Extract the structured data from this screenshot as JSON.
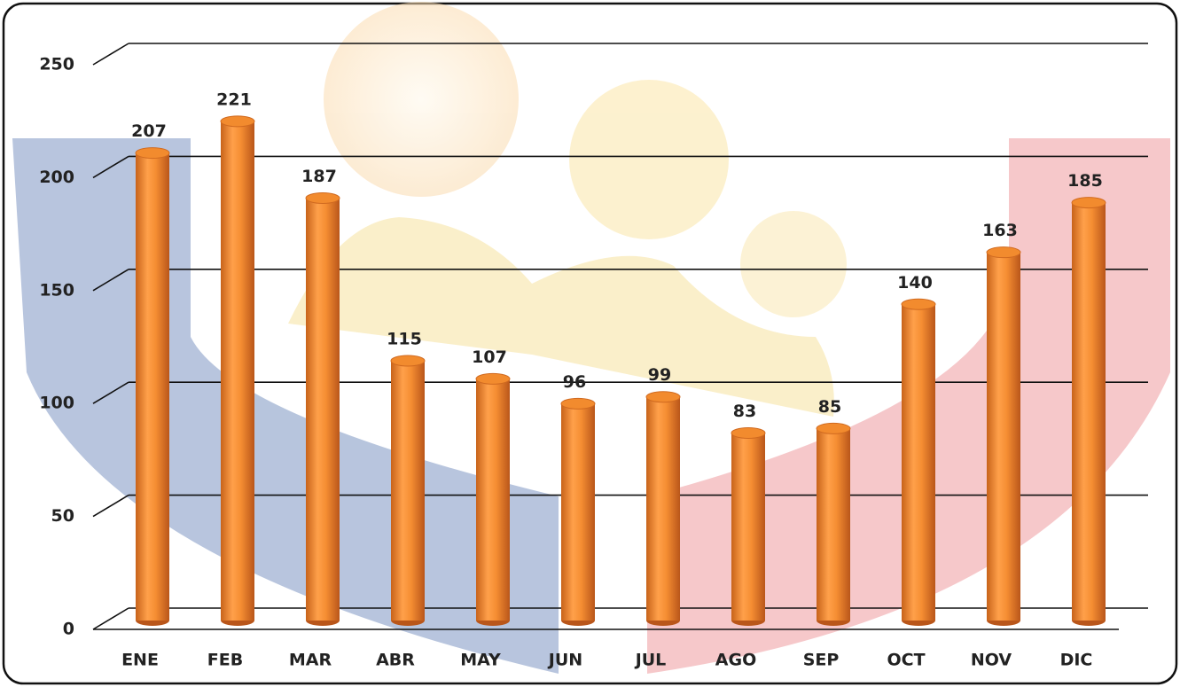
{
  "chart_data": {
    "type": "bar",
    "categories": [
      "ENE",
      "FEB",
      "MAR",
      "ABR",
      "MAY",
      "JUN",
      "JUL",
      "AGO",
      "SEP",
      "OCT",
      "NOV",
      "DIC"
    ],
    "values": [
      207,
      221,
      187,
      115,
      107,
      96,
      99,
      83,
      85,
      140,
      163,
      185
    ],
    "color": "#f28b2e",
    "ylim": [
      0,
      250
    ],
    "yticks": [
      0,
      50,
      100,
      150,
      200,
      250
    ],
    "grid": true
  }
}
